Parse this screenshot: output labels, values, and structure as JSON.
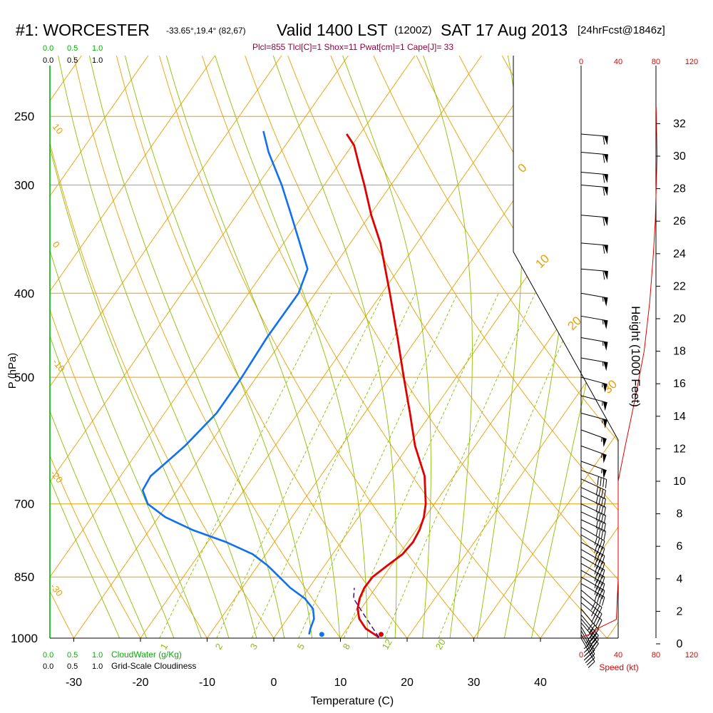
{
  "header": {
    "station": "#1: WORCESTER",
    "location": "-33.65°,19.4° (82,67)",
    "valid": "Valid 1400 LST",
    "utc": "(1200Z)",
    "date": "SAT 17 Aug 2013",
    "forecast": "[24hrFcst@1846z]",
    "indices": "Plcl=855 Tlcl[C]=1 Shox=11 Pwat[cm]=1 Cape[J]= 33"
  },
  "colors": {
    "isotherm": "#e8a000",
    "dry_adiabat": "#88c000",
    "moist_adiabat": "#88c000",
    "mixing_ratio": "#88c000",
    "temperature": "#e00000",
    "dewpoint": "#1070f0",
    "parcel": "#400080",
    "cloud": "#00b000",
    "indices": "#900040",
    "speed": "#e00000"
  },
  "chart_data": {
    "type": "line",
    "title": "#1: WORCESTER -33.65°,19.4° (82,67) Valid 1400 LST (1200Z) SAT 17 Aug 2013 [24hrFcst@1846z]",
    "xlabel": "Temperature (C)",
    "ylabel": "P (hPa)",
    "right_ylabel": "Height (1000 Feet)",
    "x_ticks": [
      "-30",
      "-20",
      "-10",
      "0",
      "10",
      "20",
      "30",
      "40"
    ],
    "pressure_ticks": [
      "250",
      "300",
      "400",
      "500",
      "700",
      "850",
      "1000"
    ],
    "height_ticks": [
      "0",
      "2",
      "4",
      "6",
      "8",
      "10",
      "12",
      "14",
      "16",
      "18",
      "20",
      "22",
      "24",
      "26",
      "28",
      "30",
      "32"
    ],
    "skewt_temp_labels": [
      "-10",
      "0",
      "10",
      "20",
      "30"
    ],
    "dry_adiabat_labels": [
      "10",
      "0",
      "-10",
      "-20",
      "-30"
    ],
    "mixing_ratio_labels": [
      "1",
      "2",
      "3",
      "5",
      "8",
      "12",
      "20"
    ],
    "cloud_top_labels": [
      "0.0",
      "0.5",
      "1.0"
    ],
    "cloud_top_labels2": [
      "0.0",
      "0.5",
      "1.0"
    ],
    "cloud_bottom_labels": [
      "0.0",
      "0.5",
      "1.0"
    ],
    "cloud_bottom_legend": "CloudWater (g/Kg)",
    "cloud_bottom_labels2": [
      "0.0",
      "0.5",
      "1.0"
    ],
    "cloud_bottom_legend2": "Grid-Scale Cloudiness",
    "speed_ticks": [
      "0",
      "40",
      "80",
      "120"
    ],
    "speed_label": "Speed (kt)",
    "temperature": [
      {
        "p": 998,
        "t": 15.7
      },
      {
        "p": 975,
        "t": 12.8
      },
      {
        "p": 950,
        "t": 10.8
      },
      {
        "p": 925,
        "t": 9.5
      },
      {
        "p": 900,
        "t": 8.7
      },
      {
        "p": 875,
        "t": 8.3
      },
      {
        "p": 850,
        "t": 8.4
      },
      {
        "p": 825,
        "t": 9.4
      },
      {
        "p": 800,
        "t": 10.5
      },
      {
        "p": 775,
        "t": 10.8
      },
      {
        "p": 750,
        "t": 10.5
      },
      {
        "p": 725,
        "t": 9.8
      },
      {
        "p": 700,
        "t": 8.7
      },
      {
        "p": 650,
        "t": 5.6
      },
      {
        "p": 600,
        "t": 1.0
      },
      {
        "p": 550,
        "t": -3.2
      },
      {
        "p": 500,
        "t": -7.9
      },
      {
        "p": 450,
        "t": -13.0
      },
      {
        "p": 400,
        "t": -18.8
      },
      {
        "p": 350,
        "t": -25.5
      },
      {
        "p": 325,
        "t": -29.8
      },
      {
        "p": 300,
        "t": -34.0
      },
      {
        "p": 285,
        "t": -36.8
      },
      {
        "p": 270,
        "t": -39.7
      },
      {
        "p": 262,
        "t": -42.0
      }
    ],
    "dewpoint": [
      {
        "p": 990,
        "t": 4.9
      },
      {
        "p": 975,
        "t": 4.5
      },
      {
        "p": 950,
        "t": 4.0
      },
      {
        "p": 925,
        "t": 2.8
      },
      {
        "p": 900,
        "t": 0.5
      },
      {
        "p": 875,
        "t": -2.8
      },
      {
        "p": 850,
        "t": -5.6
      },
      {
        "p": 825,
        "t": -8.5
      },
      {
        "p": 800,
        "t": -12.0
      },
      {
        "p": 775,
        "t": -17.2
      },
      {
        "p": 750,
        "t": -23.6
      },
      {
        "p": 725,
        "t": -29.0
      },
      {
        "p": 700,
        "t": -33.0
      },
      {
        "p": 675,
        "t": -35.2
      },
      {
        "p": 650,
        "t": -35.5
      },
      {
        "p": 625,
        "t": -34.5
      },
      {
        "p": 600,
        "t": -33.5
      },
      {
        "p": 550,
        "t": -32.2
      },
      {
        "p": 500,
        "t": -32.2
      },
      {
        "p": 450,
        "t": -32.6
      },
      {
        "p": 400,
        "t": -32.5
      },
      {
        "p": 375,
        "t": -33.7
      },
      {
        "p": 350,
        "t": -37.6
      },
      {
        "p": 325,
        "t": -41.8
      },
      {
        "p": 300,
        "t": -46.4
      },
      {
        "p": 275,
        "t": -51.8
      },
      {
        "p": 260,
        "t": -54.8
      }
    ],
    "parcel": [
      {
        "p": 998,
        "t": 15.7
      },
      {
        "p": 950,
        "t": 11.9
      },
      {
        "p": 900,
        "t": 7.8
      },
      {
        "p": 875,
        "t": 6.8
      }
    ],
    "surface_temperature": 15.7,
    "surface_dewpoint": 6.8,
    "wind_barbs": [
      {
        "p": 1000,
        "dir": 330,
        "kt": 45
      },
      {
        "p": 990,
        "dir": 330,
        "kt": 45
      },
      {
        "p": 980,
        "dir": 330,
        "kt": 45
      },
      {
        "p": 970,
        "dir": 330,
        "kt": 45
      },
      {
        "p": 960,
        "dir": 320,
        "kt": 40
      },
      {
        "p": 950,
        "dir": 320,
        "kt": 40
      },
      {
        "p": 940,
        "dir": 320,
        "kt": 40
      },
      {
        "p": 925,
        "dir": 320,
        "kt": 40
      },
      {
        "p": 910,
        "dir": 310,
        "kt": 40
      },
      {
        "p": 895,
        "dir": 310,
        "kt": 40
      },
      {
        "p": 880,
        "dir": 310,
        "kt": 40
      },
      {
        "p": 865,
        "dir": 300,
        "kt": 40
      },
      {
        "p": 850,
        "dir": 300,
        "kt": 40
      },
      {
        "p": 835,
        "dir": 300,
        "kt": 40
      },
      {
        "p": 820,
        "dir": 300,
        "kt": 40
      },
      {
        "p": 805,
        "dir": 300,
        "kt": 40
      },
      {
        "p": 790,
        "dir": 300,
        "kt": 40
      },
      {
        "p": 775,
        "dir": 300,
        "kt": 40
      },
      {
        "p": 760,
        "dir": 300,
        "kt": 40
      },
      {
        "p": 745,
        "dir": 300,
        "kt": 40
      },
      {
        "p": 730,
        "dir": 295,
        "kt": 40
      },
      {
        "p": 715,
        "dir": 295,
        "kt": 40
      },
      {
        "p": 700,
        "dir": 295,
        "kt": 40
      },
      {
        "p": 685,
        "dir": 295,
        "kt": 40
      },
      {
        "p": 670,
        "dir": 295,
        "kt": 40
      },
      {
        "p": 655,
        "dir": 295,
        "kt": 40
      },
      {
        "p": 640,
        "dir": 290,
        "kt": 40
      },
      {
        "p": 625,
        "dir": 290,
        "kt": 55
      },
      {
        "p": 600,
        "dir": 290,
        "kt": 55
      },
      {
        "p": 575,
        "dir": 290,
        "kt": 55
      },
      {
        "p": 550,
        "dir": 285,
        "kt": 55
      },
      {
        "p": 525,
        "dir": 285,
        "kt": 55
      },
      {
        "p": 500,
        "dir": 285,
        "kt": 55
      },
      {
        "p": 475,
        "dir": 280,
        "kt": 55
      },
      {
        "p": 450,
        "dir": 280,
        "kt": 55
      },
      {
        "p": 425,
        "dir": 280,
        "kt": 55
      },
      {
        "p": 400,
        "dir": 280,
        "kt": 55
      },
      {
        "p": 375,
        "dir": 275,
        "kt": 60
      },
      {
        "p": 350,
        "dir": 275,
        "kt": 60
      },
      {
        "p": 325,
        "dir": 275,
        "kt": 60
      },
      {
        "p": 300,
        "dir": 275,
        "kt": 60
      },
      {
        "p": 290,
        "dir": 275,
        "kt": 60
      },
      {
        "p": 275,
        "dir": 275,
        "kt": 60
      },
      {
        "p": 262,
        "dir": 275,
        "kt": 60
      }
    ],
    "wind_speed_profile": [
      {
        "h": 0.4,
        "kt": 0
      },
      {
        "h": 0.6,
        "kt": 10
      },
      {
        "h": 1.0,
        "kt": 20
      },
      {
        "h": 1.5,
        "kt": 38
      },
      {
        "h": 4.0,
        "kt": 40
      },
      {
        "h": 10.0,
        "kt": 40
      },
      {
        "h": 12.0,
        "kt": 47
      },
      {
        "h": 15.0,
        "kt": 58
      },
      {
        "h": 18.0,
        "kt": 68
      },
      {
        "h": 21.0,
        "kt": 74
      },
      {
        "h": 24.0,
        "kt": 78
      },
      {
        "h": 26.0,
        "kt": 80
      },
      {
        "h": 30.0,
        "kt": 82
      },
      {
        "h": 33.0,
        "kt": 81
      }
    ],
    "cloud_water": [],
    "cloudiness": []
  }
}
